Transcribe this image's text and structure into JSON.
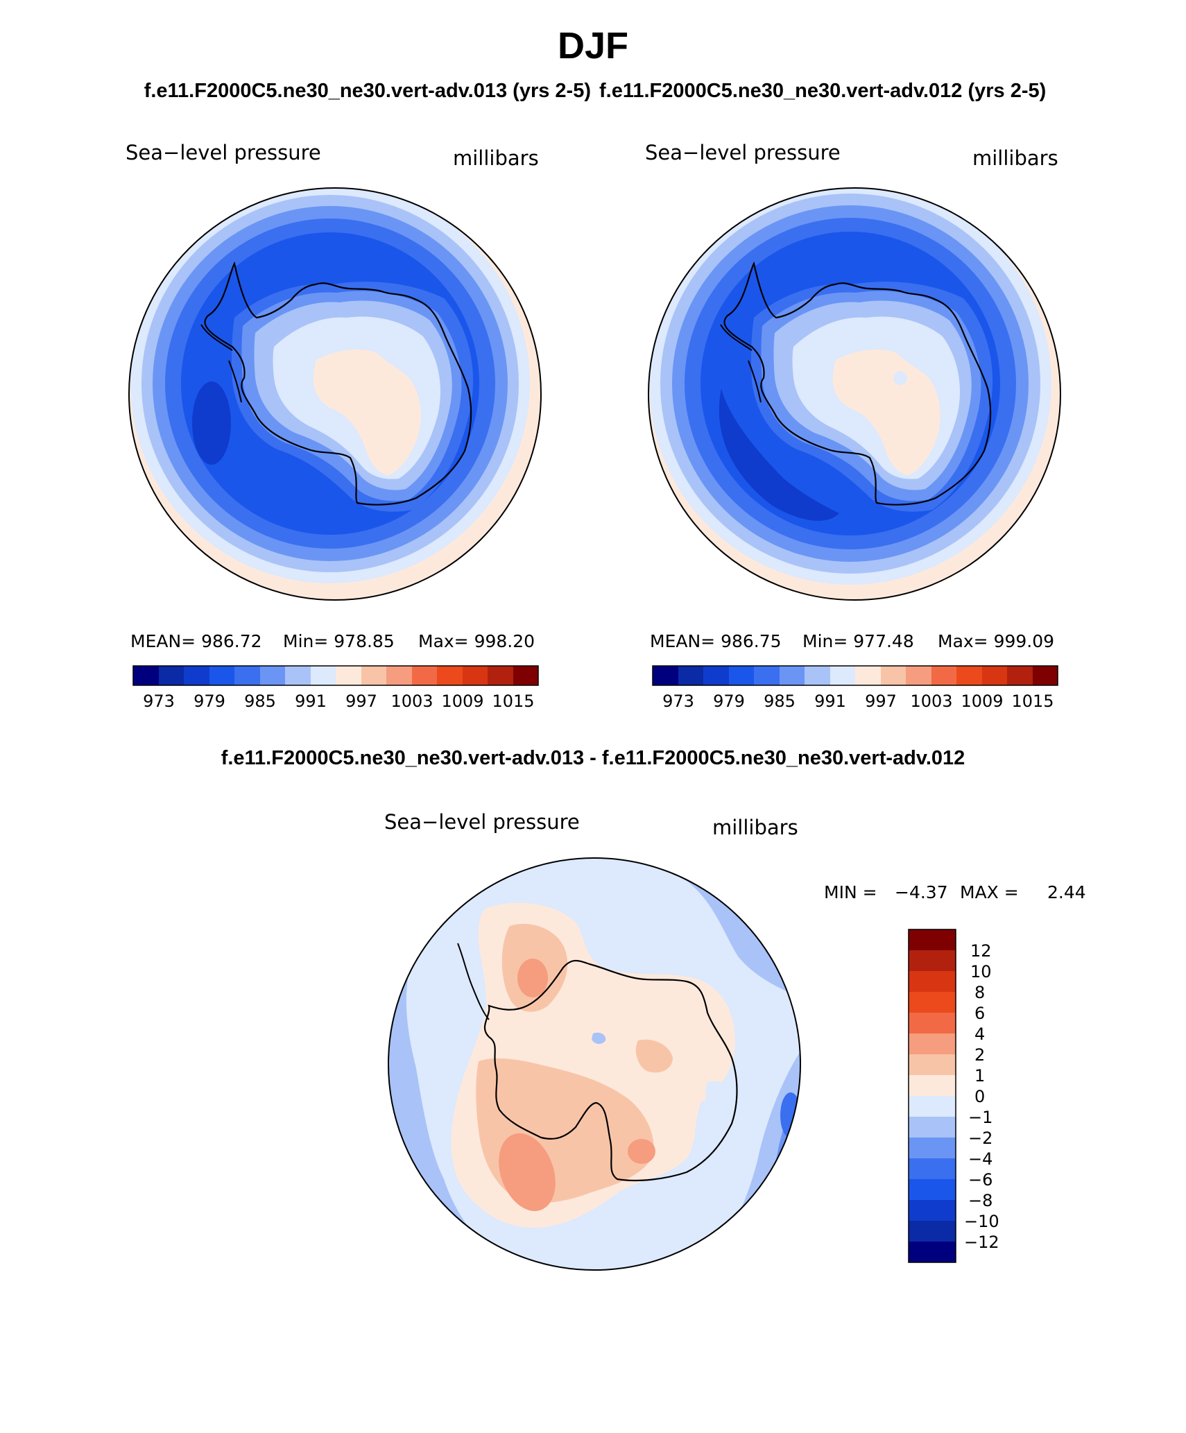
{
  "page": {
    "season": "DJF",
    "case_a_title": "f.e11.F2000C5.ne30_ne30.vert-adv.013 (yrs 2-5)",
    "case_b_title": "f.e11.F2000C5.ne30_ne30.vert-adv.012 (yrs 2-5)",
    "diff_title": "f.e11.F2000C5.ne30_ne30.vert-adv.013 - f.e11.F2000C5.ne30_ne30.vert-adv.012"
  },
  "colors": {
    "abs_scale": [
      "#00007f",
      "#0a2aa6",
      "#0f3ccc",
      "#1b56eb",
      "#3a6ff0",
      "#6a95f5",
      "#a9c3f8",
      "#dde9fc",
      "#fde9dc",
      "#f8c4a8",
      "#f59d7e",
      "#f26a45",
      "#ec4a1c",
      "#d83512",
      "#b1210e",
      "#7f0000"
    ],
    "diff_scale": [
      "#00007f",
      "#0a2aa6",
      "#0f3ccc",
      "#1b56eb",
      "#3a6ff0",
      "#6a95f5",
      "#a9c3f8",
      "#dde9fc",
      "#fde9dc",
      "#f8c4a8",
      "#f59d7e",
      "#f26a45",
      "#ec4a1c",
      "#d83512",
      "#b1210e",
      "#7f0000"
    ]
  },
  "panels": [
    {
      "label": "Sea−level pressure",
      "units": "millibars",
      "stats": {
        "mean": "MEAN= 986.72",
        "min": "Min= 978.85",
        "max": "Max= 998.20"
      },
      "colorbar_ticks": [
        "973",
        "979",
        "985",
        "991",
        "997",
        "1003",
        "1009",
        "1015"
      ]
    },
    {
      "label": "Sea−level pressure",
      "units": "millibars",
      "stats": {
        "mean": "MEAN= 986.75",
        "min": "Min= 977.48",
        "max": "Max= 999.09"
      },
      "colorbar_ticks": [
        "973",
        "979",
        "985",
        "991",
        "997",
        "1003",
        "1009",
        "1015"
      ]
    }
  ],
  "diff_panel": {
    "label": "Sea−level pressure",
    "units": "millibars",
    "min_label": "MIN =",
    "min_value": "−4.37",
    "max_label": "MAX =",
    "max_value": "2.44",
    "colorbar_ticks": [
      "12",
      "10",
      "8",
      "6",
      "4",
      "2",
      "1",
      "0",
      "−1",
      "−2",
      "−4",
      "−6",
      "−8",
      "−10",
      "−12"
    ]
  }
}
